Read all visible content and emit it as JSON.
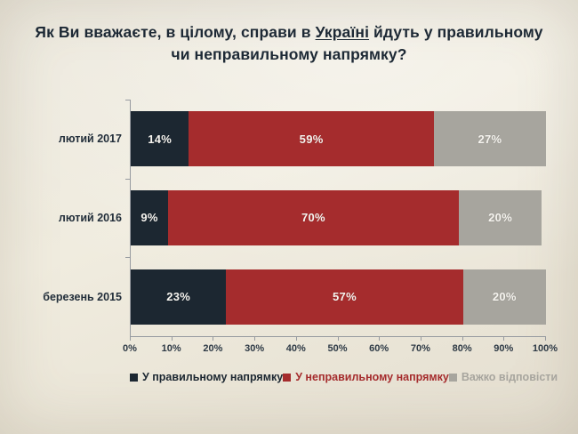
{
  "title": {
    "part1": "Як Ви вважаєте, в цілому, справи в ",
    "underlined": "Україні",
    "part2": " йдуть у правильному",
    "line2": "чи неправильному напрямку?"
  },
  "chart_data": {
    "type": "bar",
    "orientation": "horizontal",
    "stacked": true,
    "title": "Як Ви вважаєте, в цілому, справи в Україні йдуть у правильному чи неправильному напрямку?",
    "categories": [
      "лютий 2017",
      "лютий 2016",
      "березень 2015"
    ],
    "series": [
      {
        "name": "У правильному напрямку",
        "color": "#1c2731",
        "values": [
          14,
          9,
          23
        ]
      },
      {
        "name": "У неправильному напрямку",
        "color": "#a52c2d",
        "values": [
          59,
          70,
          57
        ]
      },
      {
        "name": "Важко відповісти",
        "color": "#a7a59e",
        "values": [
          27,
          20,
          20
        ]
      }
    ],
    "value_suffix": "%",
    "x_ticks": [
      "0%",
      "10%",
      "20%",
      "30%",
      "40%",
      "50%",
      "60%",
      "70%",
      "80%",
      "90%",
      "100%"
    ],
    "xlim": [
      0,
      100
    ],
    "grid": false,
    "legend_position": "bottom",
    "data_label_color": "#f6f4ef"
  }
}
